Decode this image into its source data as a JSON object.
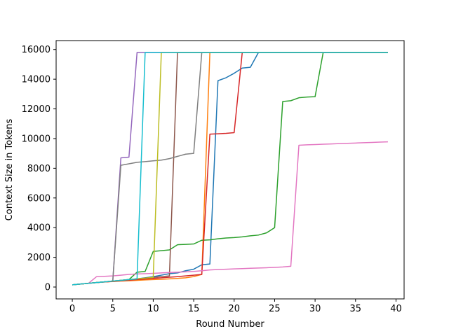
{
  "chart_data": {
    "type": "line",
    "xlabel": "Round Number",
    "ylabel": "Context Size in Tokens",
    "xlim": [
      -2,
      41
    ],
    "ylim": [
      -800,
      16600
    ],
    "xticks": [
      0,
      5,
      10,
      15,
      20,
      25,
      30,
      35,
      40
    ],
    "yticks": [
      0,
      2000,
      4000,
      6000,
      8000,
      10000,
      12000,
      14000,
      16000
    ],
    "grid": false,
    "series": [
      {
        "color": "#1f77b4",
        "points": [
          [
            0,
            150
          ],
          [
            1,
            200
          ],
          [
            2,
            250
          ],
          [
            3,
            300
          ],
          [
            4,
            350
          ],
          [
            5,
            380
          ],
          [
            6,
            420
          ],
          [
            7,
            480
          ],
          [
            8,
            550
          ],
          [
            9,
            620
          ],
          [
            10,
            700
          ],
          [
            11,
            800
          ],
          [
            12,
            900
          ],
          [
            13,
            950
          ],
          [
            14,
            1100
          ],
          [
            15,
            1200
          ],
          [
            16,
            1500
          ],
          [
            17,
            1550
          ],
          [
            18,
            13900
          ],
          [
            19,
            14100
          ],
          [
            20,
            14400
          ],
          [
            21,
            14750
          ],
          [
            22,
            14800
          ],
          [
            23,
            15800
          ],
          [
            39,
            15800
          ]
        ]
      },
      {
        "color": "#ff7f0e",
        "points": [
          [
            0,
            150
          ],
          [
            1,
            200
          ],
          [
            2,
            250
          ],
          [
            3,
            300
          ],
          [
            4,
            350
          ],
          [
            5,
            370
          ],
          [
            6,
            400
          ],
          [
            7,
            420
          ],
          [
            8,
            450
          ],
          [
            9,
            480
          ],
          [
            10,
            500
          ],
          [
            11,
            520
          ],
          [
            12,
            550
          ],
          [
            13,
            580
          ],
          [
            14,
            620
          ],
          [
            15,
            700
          ],
          [
            16,
            850
          ],
          [
            17,
            15800
          ],
          [
            39,
            15800
          ]
        ]
      },
      {
        "color": "#2ca02c",
        "points": [
          [
            0,
            150
          ],
          [
            1,
            200
          ],
          [
            2,
            250
          ],
          [
            3,
            300
          ],
          [
            4,
            350
          ],
          [
            5,
            400
          ],
          [
            6,
            450
          ],
          [
            7,
            500
          ],
          [
            8,
            1000
          ],
          [
            9,
            1050
          ],
          [
            10,
            2400
          ],
          [
            11,
            2450
          ],
          [
            12,
            2500
          ],
          [
            13,
            2850
          ],
          [
            14,
            2870
          ],
          [
            15,
            2900
          ],
          [
            16,
            3150
          ],
          [
            17,
            3180
          ],
          [
            18,
            3250
          ],
          [
            19,
            3300
          ],
          [
            20,
            3330
          ],
          [
            21,
            3380
          ],
          [
            22,
            3450
          ],
          [
            23,
            3500
          ],
          [
            24,
            3650
          ],
          [
            25,
            4000
          ],
          [
            26,
            12500
          ],
          [
            27,
            12550
          ],
          [
            28,
            12750
          ],
          [
            29,
            12800
          ],
          [
            30,
            12820
          ],
          [
            31,
            15800
          ],
          [
            39,
            15800
          ]
        ]
      },
      {
        "color": "#d62728",
        "points": [
          [
            0,
            150
          ],
          [
            1,
            200
          ],
          [
            2,
            250
          ],
          [
            3,
            300
          ],
          [
            4,
            340
          ],
          [
            5,
            380
          ],
          [
            6,
            420
          ],
          [
            7,
            460
          ],
          [
            8,
            500
          ],
          [
            9,
            540
          ],
          [
            10,
            580
          ],
          [
            11,
            620
          ],
          [
            12,
            660
          ],
          [
            13,
            700
          ],
          [
            14,
            750
          ],
          [
            15,
            800
          ],
          [
            16,
            850
          ],
          [
            17,
            10300
          ],
          [
            18,
            10320
          ],
          [
            19,
            10350
          ],
          [
            20,
            10400
          ],
          [
            21,
            15800
          ],
          [
            39,
            15800
          ]
        ]
      },
      {
        "color": "#9467bd",
        "points": [
          [
            0,
            150
          ],
          [
            1,
            200
          ],
          [
            2,
            250
          ],
          [
            3,
            300
          ],
          [
            4,
            350
          ],
          [
            5,
            400
          ],
          [
            6,
            8700
          ],
          [
            7,
            8750
          ],
          [
            8,
            15800
          ],
          [
            39,
            15800
          ]
        ]
      },
      {
        "color": "#8c564b",
        "points": [
          [
            0,
            150
          ],
          [
            1,
            200
          ],
          [
            2,
            250
          ],
          [
            3,
            300
          ],
          [
            4,
            350
          ],
          [
            5,
            400
          ],
          [
            6,
            450
          ],
          [
            7,
            500
          ],
          [
            8,
            550
          ],
          [
            9,
            600
          ],
          [
            10,
            650
          ],
          [
            11,
            700
          ],
          [
            12,
            750
          ],
          [
            13,
            15800
          ],
          [
            39,
            15800
          ]
        ]
      },
      {
        "color": "#e377c2",
        "points": [
          [
            0,
            150
          ],
          [
            1,
            200
          ],
          [
            2,
            250
          ],
          [
            3,
            700
          ],
          [
            4,
            720
          ],
          [
            5,
            750
          ],
          [
            6,
            800
          ],
          [
            7,
            850
          ],
          [
            8,
            880
          ],
          [
            9,
            900
          ],
          [
            10,
            920
          ],
          [
            11,
            950
          ],
          [
            12,
            980
          ],
          [
            13,
            1000
          ],
          [
            14,
            1020
          ],
          [
            15,
            1050
          ],
          [
            16,
            1100
          ],
          [
            17,
            1150
          ],
          [
            18,
            1180
          ],
          [
            19,
            1200
          ],
          [
            20,
            1220
          ],
          [
            21,
            1240
          ],
          [
            22,
            1260
          ],
          [
            23,
            1280
          ],
          [
            24,
            1300
          ],
          [
            25,
            1320
          ],
          [
            26,
            1350
          ],
          [
            27,
            1400
          ],
          [
            28,
            9550
          ],
          [
            29,
            9580
          ],
          [
            30,
            9600
          ],
          [
            31,
            9620
          ],
          [
            32,
            9640
          ],
          [
            33,
            9660
          ],
          [
            34,
            9680
          ],
          [
            35,
            9700
          ],
          [
            36,
            9720
          ],
          [
            37,
            9740
          ],
          [
            38,
            9760
          ],
          [
            39,
            9780
          ]
        ]
      },
      {
        "color": "#7f7f7f",
        "points": [
          [
            0,
            150
          ],
          [
            1,
            200
          ],
          [
            2,
            250
          ],
          [
            3,
            300
          ],
          [
            4,
            350
          ],
          [
            5,
            400
          ],
          [
            6,
            8200
          ],
          [
            7,
            8300
          ],
          [
            8,
            8400
          ],
          [
            9,
            8450
          ],
          [
            10,
            8500
          ],
          [
            11,
            8550
          ],
          [
            12,
            8650
          ],
          [
            13,
            8800
          ],
          [
            14,
            8950
          ],
          [
            15,
            9000
          ],
          [
            16,
            15800
          ],
          [
            39,
            15800
          ]
        ]
      },
      {
        "color": "#bcbd22",
        "points": [
          [
            0,
            150
          ],
          [
            1,
            200
          ],
          [
            2,
            250
          ],
          [
            3,
            300
          ],
          [
            4,
            350
          ],
          [
            5,
            400
          ],
          [
            6,
            450
          ],
          [
            7,
            500
          ],
          [
            8,
            550
          ],
          [
            9,
            600
          ],
          [
            10,
            650
          ],
          [
            11,
            15800
          ],
          [
            39,
            15800
          ]
        ]
      },
      {
        "color": "#17becf",
        "points": [
          [
            0,
            150
          ],
          [
            1,
            200
          ],
          [
            2,
            250
          ],
          [
            3,
            300
          ],
          [
            4,
            350
          ],
          [
            5,
            400
          ],
          [
            6,
            450
          ],
          [
            7,
            500
          ],
          [
            8,
            550
          ],
          [
            9,
            15800
          ],
          [
            39,
            15800
          ]
        ]
      }
    ]
  }
}
